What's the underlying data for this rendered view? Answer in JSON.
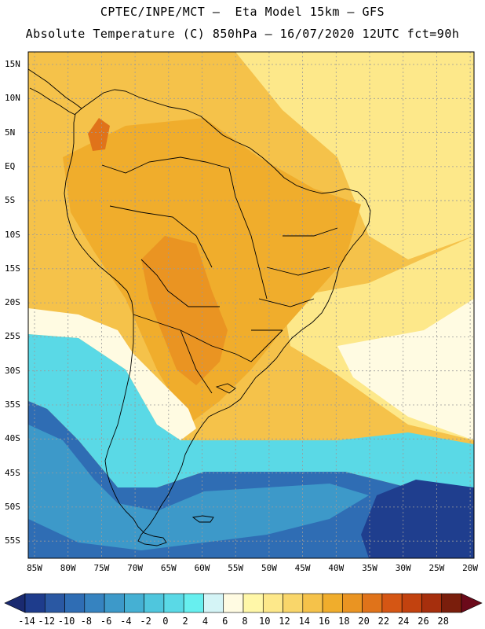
{
  "title": {
    "line1": "CPTEC/INPE/MCT –  Eta Model 15km – GFS",
    "line2": "Absolute Temperature (C) 850hPa – 16/07/2020 12UTC fct=90h"
  },
  "lat_labels": [
    "15N",
    "10N",
    "5N",
    "EQ",
    "5S",
    "10S",
    "15S",
    "20S",
    "25S",
    "30S",
    "35S",
    "40S",
    "45S",
    "50S",
    "55S"
  ],
  "lon_labels": [
    "85W",
    "80W",
    "75W",
    "70W",
    "65W",
    "60W",
    "55W",
    "50W",
    "45W",
    "40W",
    "35W",
    "30W",
    "25W",
    "20W"
  ],
  "colorbar": {
    "labels": [
      "-14",
      "-12",
      "-10",
      "-8",
      "-6",
      "-4",
      "-2",
      "0",
      "2",
      "4",
      "6",
      "8",
      "10",
      "12",
      "14",
      "16",
      "18",
      "20",
      "22",
      "24",
      "26",
      "28"
    ],
    "colors": [
      "#1e3c8c",
      "#2a58a3",
      "#2f6db4",
      "#3683c0",
      "#3d99c9",
      "#45b0d3",
      "#4fc6dd",
      "#5ad9e6",
      "#67efef",
      "#d4f4f6",
      "#fffbe2",
      "#fff7a8",
      "#fde88a",
      "#f9d66a",
      "#f5c24a",
      "#f0ad2c",
      "#ea9422",
      "#e0731a",
      "#d55614",
      "#c2420f",
      "#a62f0d",
      "#7a1e0c"
    ],
    "low_arrow_color": "#1a2a70",
    "high_arrow_color": "#6b0a1a"
  },
  "map_colors": {
    "ocean_south_deep": "#1f3e8e",
    "ocean_south_mid": "#2f6db4",
    "ocean_south_light": "#3d99c9",
    "cyan": "#5ad9e6",
    "pale": "#fffbe2",
    "light_yellow": "#fde88a",
    "yellow": "#f5c24a",
    "orange": "#f0ad2c",
    "dark_orange": "#ea9422",
    "hot": "#e0731a",
    "border": "#000000",
    "grid": "#9a9a9a"
  }
}
